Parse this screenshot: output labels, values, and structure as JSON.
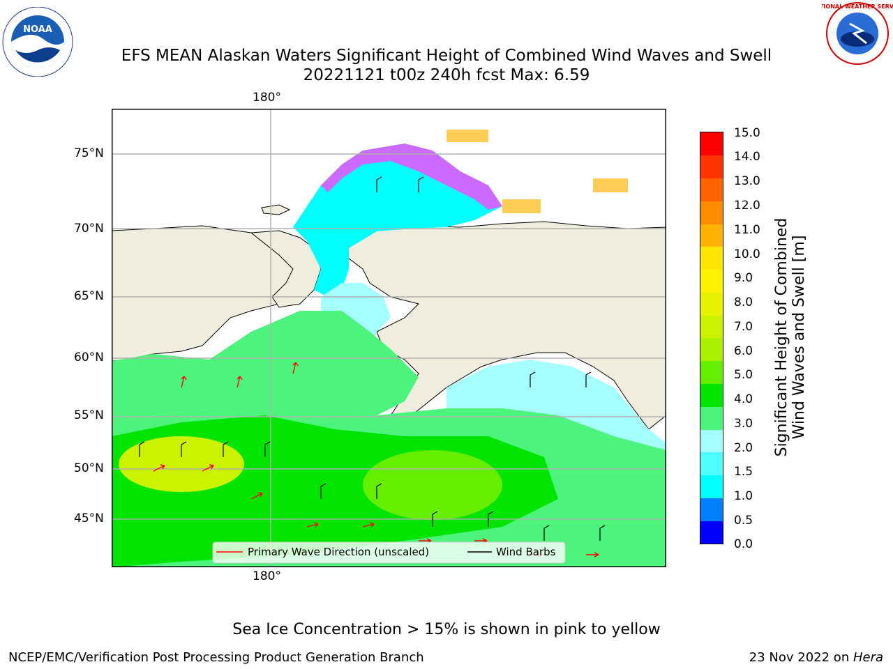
{
  "title": {
    "line1": "EFS MEAN Alaskan Waters Significant Height of Combined Wind Waves and Swell",
    "line2": "20221121 t00z 240h fcst   Max: 6.59"
  },
  "logos": {
    "left_text": "NOAA",
    "left_ring_text": "NATIONAL OCEANIC AND ATMOSPHERIC ADMINISTRATION · U.S. DEPARTMENT OF COMMERCE",
    "right_ring_text": "NATIONAL WEATHER SERVICE"
  },
  "map": {
    "lon_label_top": "180°",
    "lon_label_bottom": "180°",
    "lat_labels": [
      "75°N",
      "70°N",
      "65°N",
      "60°N",
      "55°N",
      "50°N",
      "45°N"
    ],
    "land_color": "#efedde",
    "ocean_colors": {
      "green_4_5": "#00e400",
      "green_3_4": "#4cf47c",
      "lime_5_6": "#66ee00",
      "yellow_6_7": "#ccf200",
      "cyan_1_1.5": "#00ffff",
      "lightcyan_2_3": "#a6ffff",
      "cyan_1.5_2": "#4dffff",
      "ice_pink": "#ff44ff",
      "ice_orange": "#ffcc55"
    },
    "legend": {
      "primary_wave_label": "Primary Wave Direction (unscaled)",
      "wind_barbs_label": "Wind Barbs"
    }
  },
  "colorbar": {
    "label_line1": "Significant Height of Combined",
    "label_line2": "Wind Waves and Swell [m]",
    "ticks": [
      "15.0",
      "14.0",
      "13.0",
      "12.0",
      "11.0",
      "10.0",
      "9.0",
      "8.0",
      "7.0",
      "6.0",
      "5.0",
      "4.0",
      "3.0",
      "2.0",
      "1.5",
      "1.0",
      "0.5",
      "0.0"
    ],
    "colors": [
      "#0000ff",
      "#0080ff",
      "#00ffff",
      "#4dffff",
      "#a6ffff",
      "#4cf47c",
      "#00e400",
      "#66ee00",
      "#aaf000",
      "#ccf200",
      "#e6f200",
      "#fff200",
      "#ffe600",
      "#ffb300",
      "#ff8c00",
      "#ff6400",
      "#ff3200",
      "#ff0000"
    ]
  },
  "footer": {
    "sea_ice_note": "Sea Ice Concentration > 15% is shown in pink to yellow",
    "left": "NCEP/EMC/Verification Post Processing Product Generation Branch",
    "right_date": "23 Nov 2022 on ",
    "right_host": "Hera"
  }
}
